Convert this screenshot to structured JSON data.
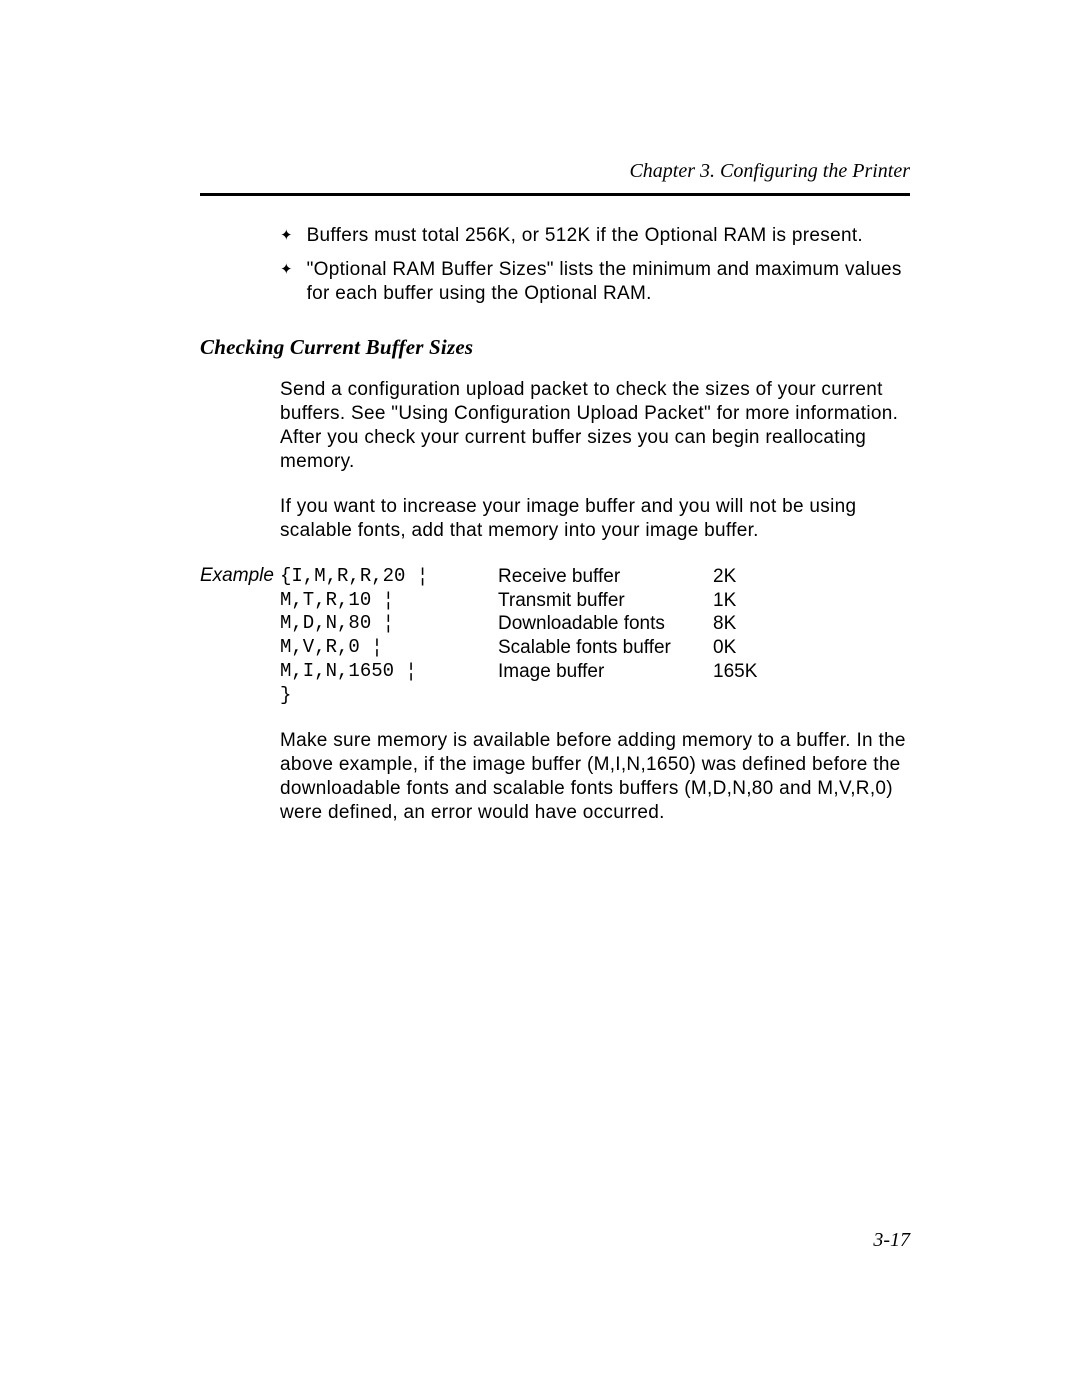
{
  "header": {
    "chapter": "Chapter 3.  Configuring the Printer"
  },
  "bullets": [
    "Buffers must total 256K, or 512K if the Optional RAM is present.",
    "\"Optional RAM Buffer Sizes\" lists the minimum and maximum values for each buffer using the Optional RAM."
  ],
  "section": {
    "heading": "Checking Current Buffer Sizes",
    "para1": "Send a configuration upload packet to check the sizes of your current buffers.  See \"Using Configuration Upload Packet\" for more information.  After you check your current buffer sizes you can begin reallocating memory.",
    "para2": "If you want to increase your image buffer and you will not be using scalable fonts, add that memory into your image buffer."
  },
  "example": {
    "label": "Example",
    "code": "{I,M,R,R,20 ¦\nM,T,R,10 ¦\nM,D,N,80 ¦\nM,V,R,0 ¦\nM,I,N,1650 ¦\n}",
    "rows": [
      {
        "desc": "Receive buffer",
        "val": "2K"
      },
      {
        "desc": "Transmit buffer",
        "val": "1K"
      },
      {
        "desc": "Downloadable fonts",
        "val": "8K"
      },
      {
        "desc": "Scalable fonts buffer",
        "val": "0K"
      },
      {
        "desc": "Image buffer",
        "val": "165K"
      }
    ]
  },
  "footer_para": "Make sure memory is available before adding memory to a buffer.  In the above example, if the image buffer (M,I,N,1650) was defined before the downloadable fonts and scalable fonts buffers (M,D,N,80 and M,V,R,0) were defined, an error would have occurred.",
  "page_number": "3-17"
}
